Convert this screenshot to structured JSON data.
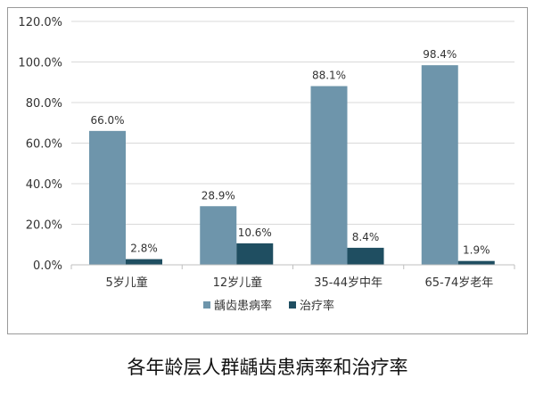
{
  "chart_data": {
    "type": "bar",
    "categories": [
      "5岁儿童",
      "12岁儿童",
      "35-44岁中年",
      "65-74岁老年"
    ],
    "series": [
      {
        "name": "龋齿患病率",
        "color": "#6e95ab",
        "values": [
          66.0,
          28.9,
          88.1,
          98.4
        ]
      },
      {
        "name": "治疗率",
        "color": "#1f4e61",
        "values": [
          2.8,
          10.6,
          8.4,
          1.9
        ]
      }
    ],
    "data_labels": [
      [
        "66.0%",
        "28.9%",
        "88.1%",
        "98.4%"
      ],
      [
        "2.8%",
        "10.6%",
        "8.4%",
        "1.9%"
      ]
    ],
    "y_ticks": [
      "0.0%",
      "20.0%",
      "40.0%",
      "60.0%",
      "80.0%",
      "100.0%",
      "120.0%"
    ],
    "ylim": [
      0,
      120
    ],
    "grid": true,
    "legend_position": "bottom"
  },
  "caption": "各年龄层人群龋齿患病率和治疗率"
}
